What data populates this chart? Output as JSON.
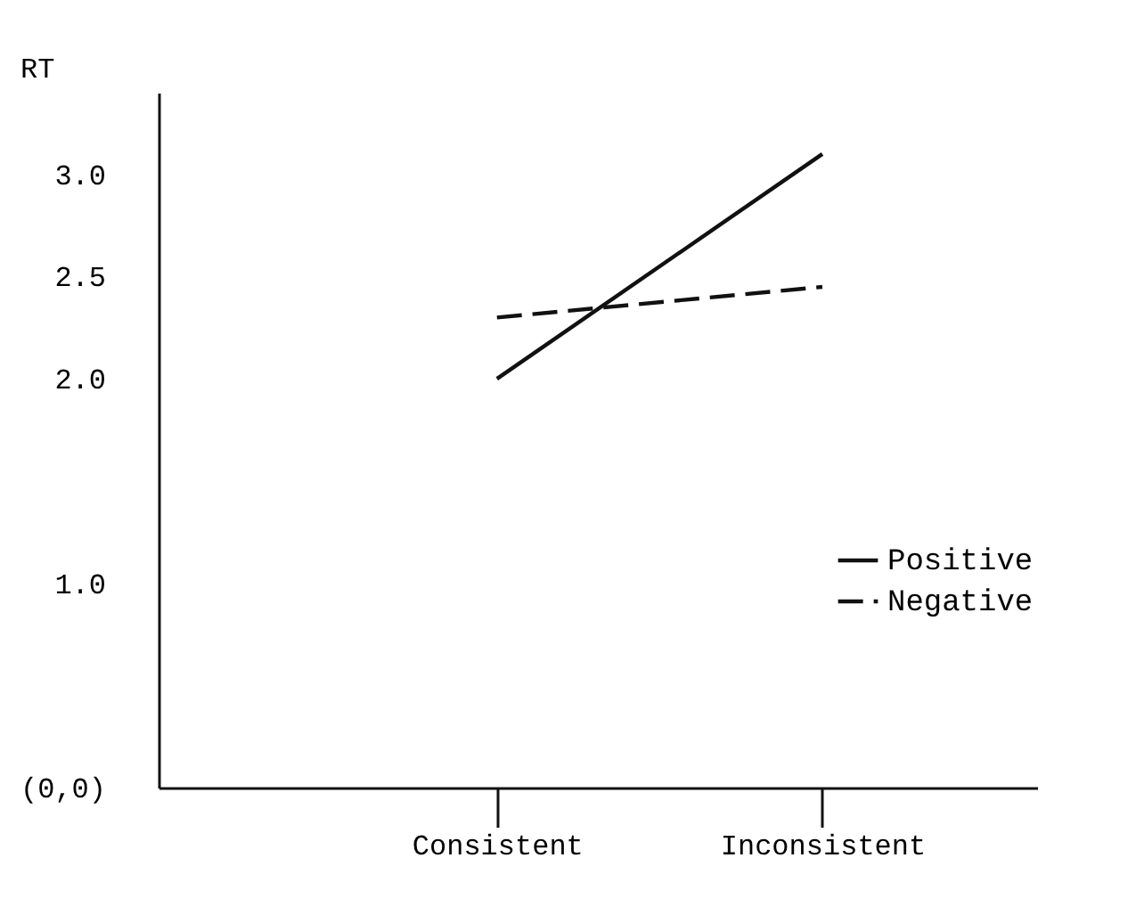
{
  "chart_data": {
    "type": "line",
    "ylabel": "RT",
    "categories": [
      "Consistent",
      "Inconsistent"
    ],
    "series": [
      {
        "name": "Positive",
        "color": "#111111",
        "line_style": "solid",
        "values": [
          2.0,
          3.1
        ]
      },
      {
        "name": "Negative",
        "color": "#111111",
        "line_style": "dashed",
        "values": [
          2.3,
          2.45
        ]
      }
    ],
    "ylim": [
      0,
      3.4
    ],
    "yticks": [
      {
        "value": 0,
        "label": "(0,0)"
      },
      {
        "value": 1,
        "label": "1.0"
      },
      {
        "value": 2,
        "label": "2.0"
      },
      {
        "value": 2.5,
        "label": "2.5"
      },
      {
        "value": 3,
        "label": "3.0"
      }
    ],
    "grid": false,
    "legend": "right",
    "marker": "none"
  }
}
